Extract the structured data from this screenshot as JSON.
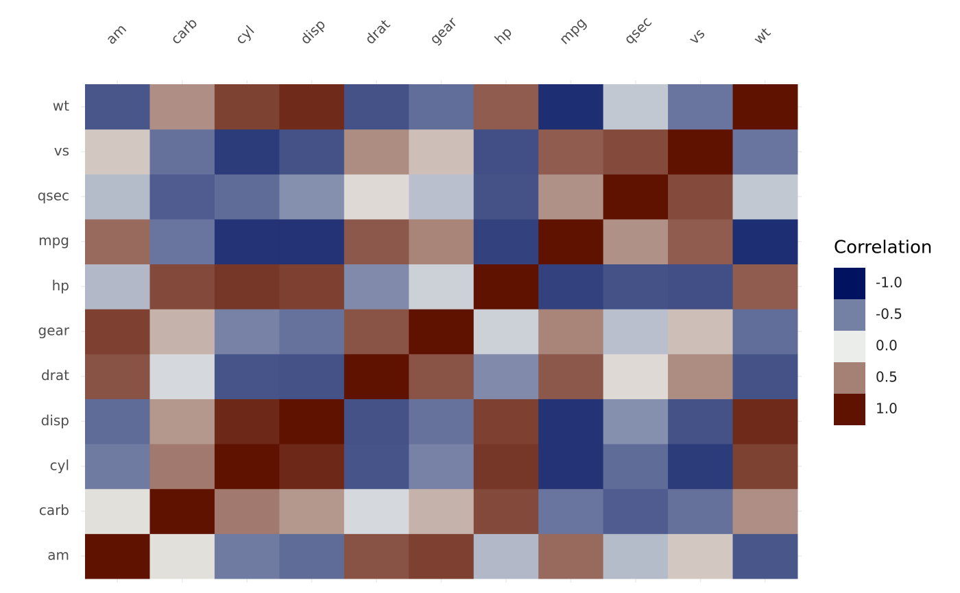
{
  "chart_data": {
    "type": "heatmap",
    "x": [
      "am",
      "carb",
      "cyl",
      "disp",
      "drat",
      "gear",
      "hp",
      "mpg",
      "qsec",
      "vs",
      "wt"
    ],
    "y": [
      "am",
      "carb",
      "cyl",
      "disp",
      "drat",
      "gear",
      "hp",
      "mpg",
      "qsec",
      "vs",
      "wt"
    ],
    "values": [
      [
        1,
        0.06,
        -0.52,
        -0.59,
        0.71,
        0.79,
        -0.24,
        0.6,
        -0.23,
        0.17,
        -0.69
      ],
      [
        0.06,
        1,
        0.53,
        0.39,
        -0.09,
        0.27,
        0.75,
        -0.55,
        -0.66,
        -0.57,
        0.43
      ],
      [
        -0.52,
        0.53,
        1,
        0.9,
        -0.7,
        -0.49,
        0.83,
        -0.85,
        -0.59,
        -0.81,
        0.78
      ],
      [
        -0.59,
        0.39,
        0.9,
        1,
        -0.71,
        -0.56,
        0.79,
        -0.85,
        -0.43,
        -0.71,
        0.89
      ],
      [
        0.71,
        -0.09,
        -0.7,
        -0.71,
        1,
        0.7,
        -0.45,
        0.68,
        0.09,
        0.44,
        -0.71
      ],
      [
        0.79,
        0.27,
        -0.49,
        -0.56,
        0.7,
        1,
        -0.13,
        0.48,
        -0.21,
        0.21,
        -0.58
      ],
      [
        -0.24,
        0.75,
        0.83,
        0.79,
        -0.45,
        -0.13,
        1,
        -0.78,
        -0.71,
        -0.72,
        0.66
      ],
      [
        0.6,
        -0.55,
        -0.85,
        -0.85,
        0.68,
        0.48,
        -0.78,
        1,
        0.42,
        0.66,
        -0.87
      ],
      [
        -0.23,
        -0.66,
        -0.59,
        -0.43,
        0.09,
        -0.21,
        -0.71,
        0.42,
        1,
        0.74,
        -0.17
      ],
      [
        0.17,
        -0.57,
        -0.81,
        -0.71,
        0.44,
        0.21,
        -0.72,
        0.66,
        0.74,
        1,
        -0.55
      ],
      [
        -0.69,
        0.43,
        0.78,
        0.89,
        -0.71,
        -0.58,
        0.66,
        -0.87,
        -0.17,
        -0.55,
        1
      ]
    ],
    "legend_title": "Correlation",
    "color_low": "#001260",
    "color_mid": "#eaede9",
    "color_high": "#601200",
    "color_limits": [
      -1,
      1
    ],
    "legend_ticks": [
      {
        "value": -1,
        "label": "-1.0"
      },
      {
        "value": -0.5,
        "label": "-0.5"
      },
      {
        "value": 0,
        "label": "0.0"
      },
      {
        "value": 0.5,
        "label": "0.5"
      },
      {
        "value": 1,
        "label": "1.0"
      }
    ],
    "grid": true
  }
}
